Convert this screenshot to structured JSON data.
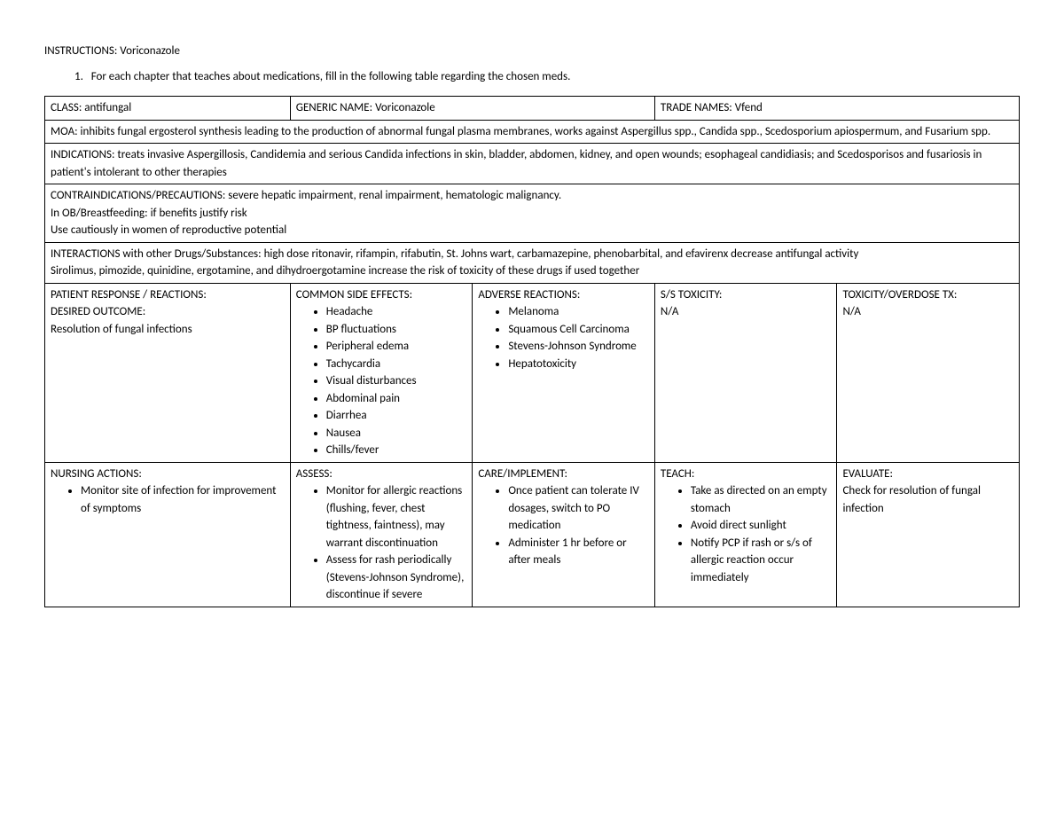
{
  "instructions_label": "INSTRUCTIONS:",
  "instructions_value": "Voriconazole",
  "numbered_item": "For each chapter that teaches about medications, fill in the following table regarding the chosen meds.",
  "row1": {
    "class_label": "CLASS:",
    "class_value": "antifungal",
    "generic_label": "GENERIC NAME:",
    "generic_value": "Voriconazole",
    "trade_label": "TRADE NAMES:",
    "trade_value": "Vfend"
  },
  "moa": {
    "label": "MOA:",
    "text": "inhibits fungal ergosterol synthesis leading to the production of abnormal fungal plasma membranes, works against Aspergillus spp., Candida spp., Scedosporium apiospermum, and Fusarium spp."
  },
  "indications": {
    "label": "INDICATIONS:",
    "text": "treats invasive Aspergillosis, Candidemia and serious Candida infections in skin, bladder, abdomen, kidney, and open wounds; esophageal candidiasis; and Scedosporisos and fusariosis in patient's intolerant to other therapies"
  },
  "contraindications": {
    "label": "CONTRAINDICATIONS/PRECAUTIONS:",
    "line1": "severe hepatic impairment, renal impairment, hematologic malignancy.",
    "line2": "In OB/Breastfeeding: if benefits justify risk",
    "line3": "Use cautiously in women of reproductive potential"
  },
  "interactions": {
    "label": "INTERACTIONS with other Drugs/Substances:",
    "line1": "high dose ritonavir, rifampin, rifabutin, St. Johns wart, carbamazepine, phenobarbital, and efavirenx decrease antifungal activity",
    "line2": "Sirolimus, pimozide, quinidine, ergotamine, and dihydroergotamine increase the risk of toxicity of these drugs if used together"
  },
  "reactions_row": {
    "col1_label1": "PATIENT RESPONSE / REACTIONS:",
    "col1_label2": "DESIRED OUTCOME:",
    "col1_text": "Resolution of fungal infections",
    "col2_label": "COMMON SIDE EFFECTS:",
    "col2_items": [
      "Headache",
      "BP fluctuations",
      "Peripheral edema",
      "Tachycardia",
      "Visual disturbances",
      "Abdominal pain",
      "Diarrhea",
      "Nausea",
      "Chills/fever"
    ],
    "col3_label": "ADVERSE REACTIONS:",
    "col3_items": [
      "Melanoma",
      "Squamous Cell Carcinoma",
      "Stevens-Johnson Syndrome",
      "Hepatotoxicity"
    ],
    "col4_label": "S/S TOXICITY:",
    "col4_text": "N/A",
    "col5_label": "TOXICITY/OVERDOSE TX:",
    "col5_text": "N/A"
  },
  "nursing_row": {
    "col1_label": "NURSING ACTIONS:",
    "col1_items": [
      "Monitor site of infection for improvement of symptoms"
    ],
    "col2_label": "ASSESS:",
    "col2_items": [
      "Monitor for allergic reactions (flushing, fever, chest tightness, faintness), may warrant discontinuation",
      "Assess for rash periodically (Stevens-Johnson Syndrome), discontinue if severe"
    ],
    "col3_label": "CARE/IMPLEMENT:",
    "col3_items": [
      "Once patient can tolerate IV dosages, switch to PO medication",
      "Administer 1 hr before or after meals"
    ],
    "col4_label": "TEACH:",
    "col4_items": [
      "Take as directed on an empty stomach",
      "Avoid direct sunlight",
      "Notify PCP if rash or s/s of allergic reaction occur immediately"
    ],
    "col5_label": "EVALUATE:",
    "col5_text": "Check for resolution of fungal infection"
  }
}
